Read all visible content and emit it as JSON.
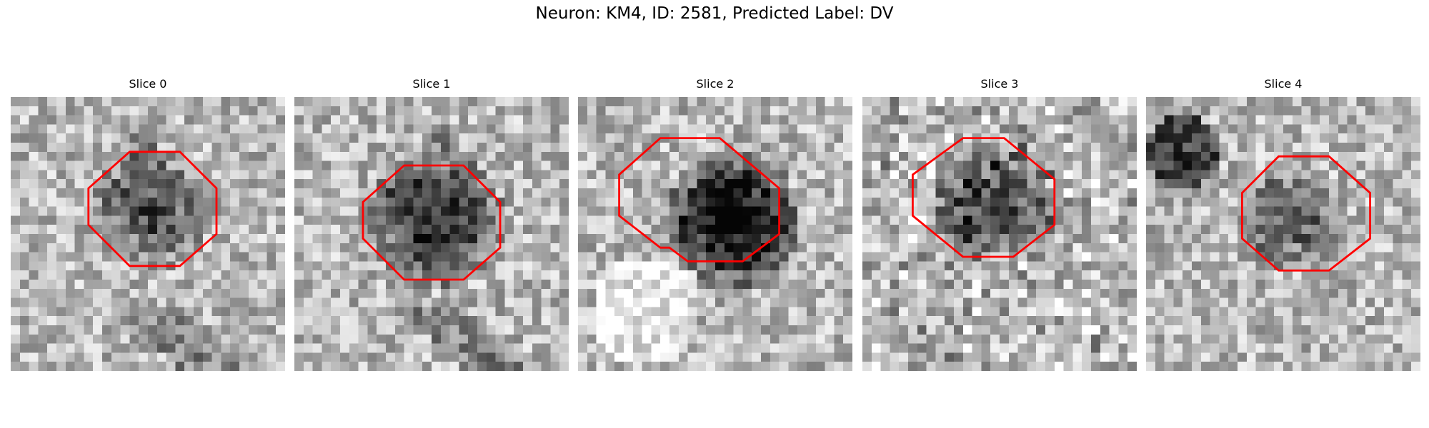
{
  "figure": {
    "title": "Neuron: KM4, ID: 2581, Predicted Label: DV"
  },
  "colors": {
    "outline": "#ff0000",
    "background": "#ffffff"
  },
  "panels": [
    {
      "title": "Slice 0",
      "seed": 11,
      "blob_strength": 0.45,
      "extra": "stalk-up"
    },
    {
      "title": "Slice 1",
      "seed": 23,
      "blob_strength": 0.6,
      "extra": "stalk-up"
    },
    {
      "title": "Slice 2",
      "seed": 37,
      "blob_strength": 0.85,
      "extra": "pale-lower-left"
    },
    {
      "title": "Slice 3",
      "seed": 41,
      "blob_strength": 0.55,
      "extra": "noisy"
    },
    {
      "title": "Slice 4",
      "seed": 53,
      "blob_strength": 0.4,
      "extra": "dark-top-left"
    }
  ]
}
